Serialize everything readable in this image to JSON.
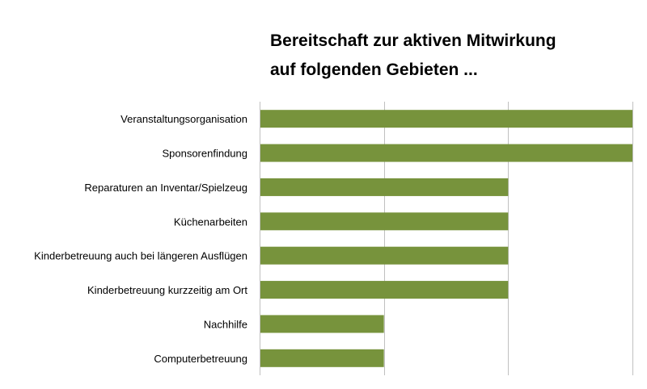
{
  "chart_data": {
    "type": "bar",
    "orientation": "horizontal",
    "title_lines": [
      "Bereitschaft zur aktiven Mitwirkung",
      "auf folgenden Gebieten ..."
    ],
    "categories": [
      "Veranstaltungsorganisation",
      "Sponsorenfindung",
      "Reparaturen an Inventar/Spielzeug",
      "Küchenarbeiten",
      "Kinderbetreuung auch bei längeren Ausflügen",
      "Kinderbetreuung kurzzeitig am Ort",
      "Nachhilfe",
      "Computerbetreuung"
    ],
    "values": [
      3,
      3,
      2,
      2,
      2,
      2,
      1,
      1
    ],
    "xlim": [
      0,
      3
    ],
    "xticks": [
      0,
      1,
      2,
      3
    ],
    "grid": true,
    "xlabel": "",
    "ylabel": "",
    "legend": "none",
    "bar_color": "#77933c",
    "grid_color": "#c0c0c0"
  }
}
